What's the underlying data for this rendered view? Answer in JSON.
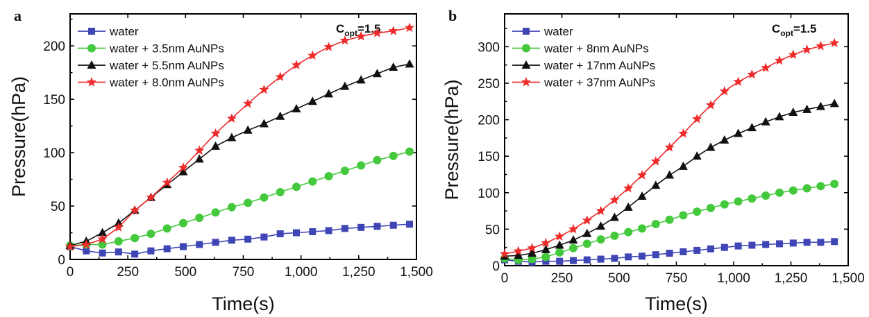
{
  "colors": {
    "water": "#3f45b5",
    "green": "#44c83c",
    "black": "#111111",
    "red": "#ee2b2b"
  },
  "chart_data": [
    {
      "type": "line",
      "panel_label": "a",
      "annotation": {
        "main": "C",
        "sub": "opt",
        "suffix": "=1.5"
      },
      "xlabel": "Time(s)",
      "ylabel": "Pressure(hPa)",
      "xlim": [
        0,
        1500
      ],
      "ylim": [
        0,
        230
      ],
      "xticks": [
        0,
        250,
        500,
        750,
        1000,
        1250,
        1500
      ],
      "xtick_labels": [
        "0",
        "250",
        "500",
        "750",
        "1,000",
        "1,250",
        "1,500"
      ],
      "yticks": [
        0,
        50,
        100,
        150,
        200
      ],
      "ytick_labels": [
        "0",
        "50",
        "100",
        "150",
        "200"
      ],
      "legend_position": "top-left",
      "series": [
        {
          "name": "water",
          "color": "#3f45b5",
          "marker": "square",
          "x": [
            0,
            70,
            140,
            210,
            280,
            350,
            420,
            490,
            560,
            630,
            700,
            770,
            840,
            910,
            980,
            1050,
            1120,
            1190,
            1260,
            1330,
            1400,
            1470
          ],
          "y": [
            12,
            8,
            6,
            7,
            5,
            8,
            10,
            12,
            14,
            16,
            18,
            19,
            21,
            24,
            25,
            26,
            27,
            29,
            30,
            31,
            32,
            33
          ]
        },
        {
          "name": "water + 3.5nm AuNPs",
          "color": "#44c83c",
          "marker": "circle",
          "x": [
            0,
            70,
            140,
            210,
            280,
            350,
            420,
            490,
            560,
            630,
            700,
            770,
            840,
            910,
            980,
            1050,
            1120,
            1190,
            1260,
            1330,
            1400,
            1470
          ],
          "y": [
            13,
            14,
            14,
            17,
            20,
            24,
            29,
            34,
            39,
            44,
            49,
            53,
            58,
            63,
            68,
            73,
            78,
            83,
            88,
            93,
            97,
            101
          ]
        },
        {
          "name": "water + 5.5nm AuNPs",
          "color": "#111111",
          "marker": "triangle",
          "x": [
            0,
            70,
            140,
            210,
            280,
            350,
            420,
            490,
            560,
            630,
            700,
            770,
            840,
            910,
            980,
            1050,
            1120,
            1190,
            1260,
            1330,
            1400,
            1470
          ],
          "y": [
            13,
            17,
            25,
            34,
            46,
            58,
            70,
            82,
            94,
            106,
            114,
            121,
            127,
            134,
            141,
            148,
            155,
            162,
            168,
            174,
            180,
            183
          ]
        },
        {
          "name": "water + 8.0nm AuNPs",
          "color": "#ee2b2b",
          "marker": "star",
          "x": [
            0,
            70,
            140,
            210,
            280,
            350,
            420,
            490,
            560,
            630,
            700,
            770,
            840,
            910,
            980,
            1050,
            1120,
            1190,
            1260,
            1330,
            1400,
            1470
          ],
          "y": [
            12,
            14,
            19,
            30,
            46,
            58,
            72,
            86,
            102,
            118,
            132,
            146,
            159,
            171,
            182,
            191,
            199,
            205,
            209,
            212,
            214,
            217
          ]
        }
      ]
    },
    {
      "type": "line",
      "panel_label": "b",
      "annotation": {
        "main": "C",
        "sub": "opt",
        "suffix": "=1.5"
      },
      "xlabel": "Time(s)",
      "ylabel": "Pressure(hPa)",
      "xlim": [
        0,
        1500
      ],
      "ylim": [
        0,
        345
      ],
      "xticks": [
        0,
        250,
        500,
        750,
        1000,
        1250,
        1500
      ],
      "xtick_labels": [
        "0",
        "250",
        "500",
        "750",
        "1,000",
        "1,250",
        "1,500"
      ],
      "yticks": [
        0,
        50,
        100,
        150,
        200,
        250,
        300
      ],
      "ytick_labels": [
        "0",
        "50",
        "100",
        "150",
        "200",
        "250",
        "300"
      ],
      "legend_position": "top-left",
      "series": [
        {
          "name": "water",
          "color": "#3f45b5",
          "marker": "square",
          "x": [
            0,
            60,
            120,
            180,
            240,
            300,
            360,
            420,
            480,
            540,
            600,
            660,
            720,
            780,
            840,
            900,
            960,
            1020,
            1080,
            1140,
            1200,
            1260,
            1320,
            1380,
            1440
          ],
          "y": [
            8,
            6,
            5,
            6,
            6,
            7,
            8,
            9,
            10,
            12,
            13,
            15,
            17,
            19,
            21,
            23,
            25,
            27,
            28,
            29,
            30,
            31,
            32,
            32,
            33
          ]
        },
        {
          "name": "water + 8nm AuNPs",
          "color": "#44c83c",
          "marker": "circle",
          "x": [
            0,
            60,
            120,
            180,
            240,
            300,
            360,
            420,
            480,
            540,
            600,
            660,
            720,
            780,
            840,
            900,
            960,
            1020,
            1080,
            1140,
            1200,
            1260,
            1320,
            1380,
            1440
          ],
          "y": [
            10,
            8,
            9,
            12,
            18,
            24,
            30,
            36,
            41,
            46,
            51,
            57,
            63,
            69,
            74,
            79,
            84,
            88,
            92,
            96,
            100,
            103,
            106,
            109,
            112
          ]
        },
        {
          "name": "water + 17nm AuNPs",
          "color": "#111111",
          "marker": "triangle",
          "x": [
            0,
            60,
            120,
            180,
            240,
            300,
            360,
            420,
            480,
            540,
            600,
            660,
            720,
            780,
            840,
            900,
            960,
            1020,
            1080,
            1140,
            1200,
            1260,
            1320,
            1380,
            1440
          ],
          "y": [
            13,
            14,
            17,
            22,
            28,
            35,
            44,
            54,
            66,
            80,
            95,
            110,
            124,
            136,
            150,
            162,
            172,
            181,
            189,
            197,
            204,
            210,
            214,
            218,
            222
          ]
        },
        {
          "name": "water + 37nm AuNPs",
          "color": "#ee2b2b",
          "marker": "star",
          "x": [
            0,
            60,
            120,
            180,
            240,
            300,
            360,
            420,
            480,
            540,
            600,
            660,
            720,
            780,
            840,
            900,
            960,
            1020,
            1080,
            1140,
            1200,
            1260,
            1320,
            1380,
            1440
          ],
          "y": [
            16,
            20,
            24,
            31,
            40,
            50,
            62,
            75,
            90,
            106,
            124,
            143,
            162,
            181,
            201,
            220,
            239,
            252,
            262,
            271,
            281,
            289,
            296,
            301,
            305
          ]
        }
      ]
    }
  ]
}
